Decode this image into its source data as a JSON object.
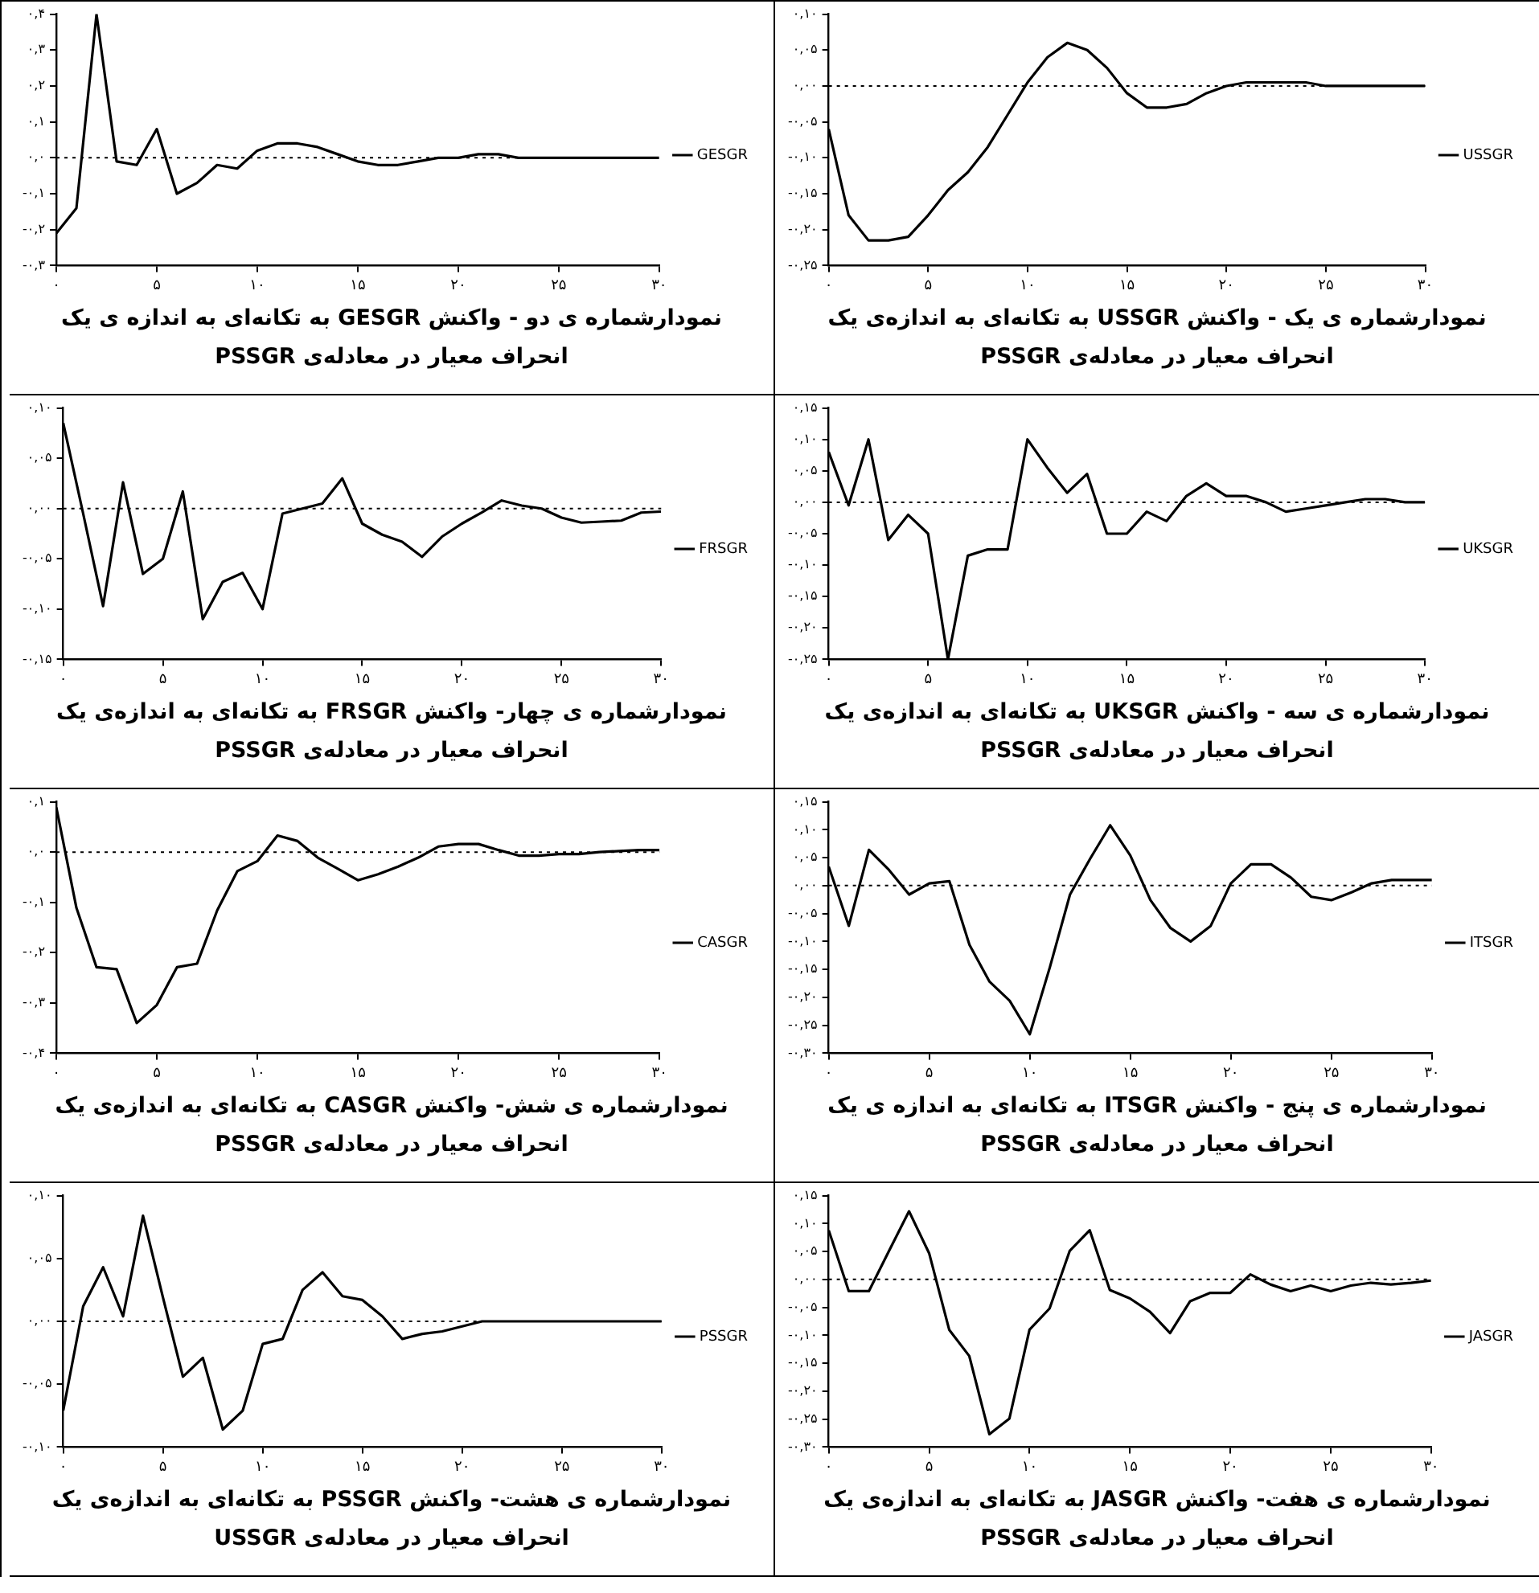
{
  "chart_data": [
    {
      "type": "line",
      "title": "نمودارشماره ی یک - واکنش USSGR به تکانه‌ای به اندازه‌ی یک انحراف معیار در معادله‌ی PSSGR",
      "x": [
        0,
        1,
        2,
        3,
        4,
        5,
        6,
        7,
        8,
        9,
        10,
        11,
        12,
        13,
        14,
        15,
        16,
        17,
        18,
        19,
        20,
        21,
        22,
        23,
        24,
        25,
        26,
        27,
        28,
        29,
        30
      ],
      "series": [
        {
          "name": "USSGR",
          "color": "#000000",
          "values": [
            -0.06,
            -0.18,
            -0.215,
            -0.215,
            -0.21,
            -0.18,
            -0.145,
            -0.12,
            -0.085,
            -0.04,
            0.005,
            0.04,
            0.06,
            0.05,
            0.025,
            -0.01,
            -0.03,
            -0.03,
            -0.025,
            -0.01,
            0,
            0.005,
            0.005,
            0.005,
            0.005,
            0,
            0,
            0,
            0,
            0,
            0
          ]
        }
      ],
      "xlim": [
        0,
        30
      ],
      "xticks": [
        {
          "value": 0,
          "label": "۰"
        },
        {
          "value": 5,
          "label": "۵"
        },
        {
          "value": 10,
          "label": "۱۰"
        },
        {
          "value": 15,
          "label": "۱۵"
        },
        {
          "value": 20,
          "label": "۲۰"
        },
        {
          "value": 25,
          "label": "۲۵"
        },
        {
          "value": 30,
          "label": "۳۰"
        }
      ],
      "ylim": [
        -0.25,
        0.1
      ],
      "yticks": [
        {
          "value": -0.25,
          "label": "-۰,۲۵"
        },
        {
          "value": -0.2,
          "label": "-۰,۲۰"
        },
        {
          "value": -0.15,
          "label": "-۰,۱۵"
        },
        {
          "value": -0.1,
          "label": "-۰,۱۰"
        },
        {
          "value": -0.05,
          "label": "-۰,۰۵"
        },
        {
          "value": 0,
          "label": "۰,۰۰"
        },
        {
          "value": 0.05,
          "label": "۰,۰۵"
        },
        {
          "value": 0.1,
          "label": "۰,۱۰"
        }
      ],
      "ref_lines": [
        {
          "axis": "y",
          "value": 0,
          "line_style": "dotted"
        }
      ],
      "legend": "right",
      "marker": "none",
      "line_style": "solid",
      "grid": false
    },
    {
      "type": "line",
      "title": "نمودارشماره ی دو - واکنش GESGR به تکانه‌ای به اندازه ی یک انحراف معیار در معادله‌ی PSSGR",
      "x": [
        0,
        1,
        2,
        3,
        4,
        5,
        6,
        7,
        8,
        9,
        10,
        11,
        12,
        13,
        14,
        15,
        16,
        17,
        18,
        19,
        20,
        21,
        22,
        23,
        24,
        25,
        26,
        27,
        28,
        29,
        30
      ],
      "series": [
        {
          "name": "GESGR",
          "color": "#000000",
          "values": [
            -0.21,
            -0.14,
            0.4,
            -0.01,
            -0.02,
            0.08,
            -0.1,
            -0.07,
            -0.02,
            -0.03,
            0.02,
            0.04,
            0.04,
            0.03,
            0.01,
            -0.01,
            -0.02,
            -0.02,
            -0.01,
            0,
            0,
            0.01,
            0.01,
            0,
            0,
            0,
            0,
            0,
            0,
            0,
            0
          ]
        }
      ],
      "xlim": [
        0,
        30
      ],
      "xticks": [
        {
          "value": 0,
          "label": "۰"
        },
        {
          "value": 5,
          "label": "۵"
        },
        {
          "value": 10,
          "label": "۱۰"
        },
        {
          "value": 15,
          "label": "۱۵"
        },
        {
          "value": 20,
          "label": "۲۰"
        },
        {
          "value": 25,
          "label": "۲۵"
        },
        {
          "value": 30,
          "label": "۳۰"
        }
      ],
      "ylim": [
        -0.3,
        0.4
      ],
      "yticks": [
        {
          "value": -0.3,
          "label": "-۰,۳"
        },
        {
          "value": -0.2,
          "label": "-۰,۲"
        },
        {
          "value": -0.1,
          "label": "-۰,۱"
        },
        {
          "value": 0,
          "label": "۰,۰"
        },
        {
          "value": 0.1,
          "label": "۰,۱"
        },
        {
          "value": 0.2,
          "label": "۰,۲"
        },
        {
          "value": 0.3,
          "label": "۰,۳"
        },
        {
          "value": 0.4,
          "label": "۰,۴"
        }
      ],
      "ref_lines": [
        {
          "axis": "y",
          "value": 0,
          "line_style": "dotted"
        }
      ],
      "legend": "right",
      "marker": "none",
      "line_style": "solid",
      "grid": false
    },
    {
      "type": "line",
      "title": "نمودارشماره ی سه - واکنش UKSGR به تکانه‌ای به اندازه‌ی یک انحراف معیار در معادله‌ی PSSGR",
      "x": [
        0,
        1,
        2,
        3,
        4,
        5,
        6,
        7,
        8,
        9,
        10,
        11,
        12,
        13,
        14,
        15,
        16,
        17,
        18,
        19,
        20,
        21,
        22,
        23,
        24,
        25,
        26,
        27,
        28,
        29,
        30
      ],
      "series": [
        {
          "name": "UKSGR",
          "color": "#000000",
          "values": [
            0.08,
            -0.005,
            0.1,
            -0.06,
            -0.02,
            -0.05,
            -0.25,
            -0.085,
            -0.075,
            -0.075,
            0.1,
            0.055,
            0.015,
            0.045,
            -0.05,
            -0.05,
            -0.015,
            -0.03,
            0.01,
            0.03,
            0.01,
            0.01,
            0,
            -0.015,
            -0.01,
            -0.005,
            0,
            0.005,
            0.005,
            0,
            0
          ]
        }
      ],
      "xlim": [
        0,
        30
      ],
      "xticks": [
        {
          "value": 0,
          "label": "۰"
        },
        {
          "value": 5,
          "label": "۵"
        },
        {
          "value": 10,
          "label": "۱۰"
        },
        {
          "value": 15,
          "label": "۱۵"
        },
        {
          "value": 20,
          "label": "۲۰"
        },
        {
          "value": 25,
          "label": "۲۵"
        },
        {
          "value": 30,
          "label": "۳۰"
        }
      ],
      "ylim": [
        -0.25,
        0.15
      ],
      "yticks": [
        {
          "value": -0.25,
          "label": "-۰,۲۵"
        },
        {
          "value": -0.2,
          "label": "-۰,۲۰"
        },
        {
          "value": -0.15,
          "label": "-۰,۱۵"
        },
        {
          "value": -0.1,
          "label": "-۰,۱۰"
        },
        {
          "value": -0.05,
          "label": "-۰,۰۵"
        },
        {
          "value": 0,
          "label": "۰,۰۰"
        },
        {
          "value": 0.05,
          "label": "۰,۰۵"
        },
        {
          "value": 0.1,
          "label": "۰,۱۰"
        },
        {
          "value": 0.15,
          "label": "۰,۱۵"
        }
      ],
      "ref_lines": [
        {
          "axis": "y",
          "value": 0,
          "line_style": "dotted"
        }
      ],
      "legend": "right",
      "marker": "none",
      "line_style": "solid",
      "grid": false
    },
    {
      "type": "line",
      "title": "نمودارشماره ی چهار- واکنش FRSGR به تکانه‌ای به اندازه‌ی یک انحراف معیار در معادله‌ی PSSGR",
      "x": [
        0,
        1,
        2,
        3,
        4,
        5,
        6,
        7,
        8,
        9,
        10,
        11,
        12,
        13,
        14,
        15,
        16,
        17,
        18,
        19,
        20,
        21,
        22,
        23,
        24,
        25,
        26,
        27,
        28,
        29,
        30
      ],
      "series": [
        {
          "name": "FRSGR",
          "color": "#000000",
          "values": [
            0.085,
            -0.005,
            -0.097,
            0.026,
            -0.065,
            -0.05,
            0.017,
            -0.11,
            -0.073,
            -0.064,
            -0.1,
            -0.005,
            0,
            0.005,
            0.03,
            -0.015,
            -0.026,
            -0.033,
            -0.048,
            -0.028,
            -0.015,
            -0.004,
            0.008,
            0.003,
            0,
            -0.009,
            -0.014,
            -0.013,
            -0.012,
            -0.004,
            -0.003
          ]
        }
      ],
      "xlim": [
        0,
        30
      ],
      "xticks": [
        {
          "value": 0,
          "label": "۰"
        },
        {
          "value": 5,
          "label": "۵"
        },
        {
          "value": 10,
          "label": "۱۰"
        },
        {
          "value": 15,
          "label": "۱۵"
        },
        {
          "value": 20,
          "label": "۲۰"
        },
        {
          "value": 25,
          "label": "۲۵"
        },
        {
          "value": 30,
          "label": "۳۰"
        }
      ],
      "ylim": [
        -0.15,
        0.1
      ],
      "yticks": [
        {
          "value": -0.15,
          "label": "-۰,۱۵"
        },
        {
          "value": -0.1,
          "label": "-۰,۱۰"
        },
        {
          "value": -0.05,
          "label": "-۰,۰۵"
        },
        {
          "value": 0,
          "label": "۰,۰۰"
        },
        {
          "value": 0.05,
          "label": "۰,۰۵"
        },
        {
          "value": 0.1,
          "label": "۰,۱۰"
        }
      ],
      "ref_lines": [
        {
          "axis": "y",
          "value": 0,
          "line_style": "dotted"
        }
      ],
      "legend": "right",
      "marker": "none",
      "line_style": "solid",
      "grid": false
    },
    {
      "type": "line",
      "title": "نمودارشماره ی پنج - واکنش ITSGR به تکانه‌ای به اندازه ی یک انحراف معیار در معادله‌ی PSSGR",
      "x": [
        0,
        1,
        2,
        3,
        4,
        5,
        6,
        7,
        8,
        9,
        10,
        11,
        12,
        13,
        14,
        15,
        16,
        17,
        18,
        19,
        20,
        21,
        22,
        23,
        24,
        25,
        26,
        27,
        28,
        29,
        30
      ],
      "series": [
        {
          "name": "ITSGR",
          "color": "#000000",
          "values": [
            0.034,
            -0.072,
            0.064,
            0.028,
            -0.016,
            0.004,
            0.008,
            -0.106,
            -0.172,
            -0.206,
            -0.266,
            -0.146,
            -0.016,
            0.048,
            0.108,
            0.054,
            -0.026,
            -0.076,
            -0.1,
            -0.072,
            0.004,
            0.038,
            0.038,
            0.014,
            -0.02,
            -0.026,
            -0.012,
            0.004,
            0.01,
            0.01,
            0.01
          ]
        }
      ],
      "xlim": [
        0,
        30
      ],
      "xticks": [
        {
          "value": 0,
          "label": "۰"
        },
        {
          "value": 5,
          "label": "۵"
        },
        {
          "value": 10,
          "label": "۱۰"
        },
        {
          "value": 15,
          "label": "۱۵"
        },
        {
          "value": 20,
          "label": "۲۰"
        },
        {
          "value": 25,
          "label": "۲۵"
        },
        {
          "value": 30,
          "label": "۳۰"
        }
      ],
      "ylim": [
        -0.3,
        0.15
      ],
      "yticks": [
        {
          "value": -0.3,
          "label": "-۰,۳۰"
        },
        {
          "value": -0.25,
          "label": "-۰,۲۵"
        },
        {
          "value": -0.2,
          "label": "-۰,۲۰"
        },
        {
          "value": -0.15,
          "label": "-۰,۱۵"
        },
        {
          "value": -0.1,
          "label": "-۰,۱۰"
        },
        {
          "value": -0.05,
          "label": "-۰,۰۵"
        },
        {
          "value": 0,
          "label": "۰,۰۰"
        },
        {
          "value": 0.05,
          "label": "۰,۰۵"
        },
        {
          "value": 0.1,
          "label": "۰,۱۰"
        },
        {
          "value": 0.15,
          "label": "۰,۱۵"
        }
      ],
      "ref_lines": [
        {
          "axis": "y",
          "value": 0,
          "line_style": "dotted"
        }
      ],
      "legend": "right",
      "marker": "none",
      "line_style": "solid",
      "grid": false
    },
    {
      "type": "line",
      "title": "نمودارشماره ی شش- واکنش CASGR به تکانه‌ای به اندازه‌ی یک انحراف معیار در معادله‌ی PSSGR",
      "x": [
        0,
        1,
        2,
        3,
        4,
        5,
        6,
        7,
        8,
        9,
        10,
        11,
        12,
        13,
        14,
        15,
        16,
        17,
        18,
        19,
        20,
        21,
        22,
        23,
        24,
        25,
        26,
        27,
        28,
        29,
        30
      ],
      "series": [
        {
          "name": "CASGR",
          "color": "#000000",
          "values": [
            0.089,
            -0.111,
            -0.229,
            -0.233,
            -0.34,
            -0.304,
            -0.229,
            -0.222,
            -0.116,
            -0.038,
            -0.018,
            0.033,
            0.022,
            -0.011,
            -0.033,
            -0.056,
            -0.044,
            -0.029,
            -0.011,
            0.011,
            0.016,
            0.016,
            0.004,
            -0.007,
            -0.007,
            -0.004,
            -0.004,
            0,
            0.002,
            0.004,
            0.004
          ]
        }
      ],
      "xlim": [
        0,
        30
      ],
      "xticks": [
        {
          "value": 0,
          "label": "۰"
        },
        {
          "value": 5,
          "label": "۵"
        },
        {
          "value": 10,
          "label": "۱۰"
        },
        {
          "value": 15,
          "label": "۱۵"
        },
        {
          "value": 20,
          "label": "۲۰"
        },
        {
          "value": 25,
          "label": "۲۵"
        },
        {
          "value": 30,
          "label": "۳۰"
        }
      ],
      "ylim": [
        -0.4,
        0.1
      ],
      "yticks": [
        {
          "value": -0.4,
          "label": "-۰,۴"
        },
        {
          "value": -0.3,
          "label": "-۰,۳"
        },
        {
          "value": -0.2,
          "label": "-۰,۲"
        },
        {
          "value": -0.1,
          "label": "-۰,۱"
        },
        {
          "value": 0,
          "label": "۰,۰"
        },
        {
          "value": 0.1,
          "label": "۰,۱"
        }
      ],
      "ref_lines": [
        {
          "axis": "y",
          "value": 0,
          "line_style": "dotted"
        }
      ],
      "legend": "right",
      "marker": "none",
      "line_style": "solid",
      "grid": false
    },
    {
      "type": "line",
      "title": "نمودارشماره ی هفت- واکنش JASGR به تکانه‌ای به اندازه‌ی یک انحراف معیار در معادله‌ی PSSGR",
      "x": [
        0,
        1,
        2,
        3,
        4,
        5,
        6,
        7,
        8,
        9,
        10,
        11,
        12,
        13,
        14,
        15,
        16,
        17,
        18,
        19,
        20,
        21,
        22,
        23,
        24,
        25,
        26,
        27,
        28,
        29,
        30
      ],
      "series": [
        {
          "name": "JASGR",
          "color": "#000000",
          "values": [
            0.088,
            -0.021,
            -0.021,
            0.051,
            0.122,
            0.047,
            -0.09,
            -0.137,
            -0.277,
            -0.249,
            -0.09,
            -0.052,
            0.051,
            0.088,
            -0.019,
            -0.034,
            -0.058,
            -0.096,
            -0.039,
            -0.024,
            -0.024,
            0.009,
            -0.009,
            -0.021,
            -0.011,
            -0.021,
            -0.011,
            -0.006,
            -0.009,
            -0.006,
            -0.002
          ]
        }
      ],
      "xlim": [
        0,
        30
      ],
      "xticks": [
        {
          "value": 0,
          "label": "۰"
        },
        {
          "value": 5,
          "label": "۵"
        },
        {
          "value": 10,
          "label": "۱۰"
        },
        {
          "value": 15,
          "label": "۱۵"
        },
        {
          "value": 20,
          "label": "۲۰"
        },
        {
          "value": 25,
          "label": "۲۵"
        },
        {
          "value": 30,
          "label": "۳۰"
        }
      ],
      "ylim": [
        -0.3,
        0.15
      ],
      "yticks": [
        {
          "value": -0.3,
          "label": "-۰,۳۰"
        },
        {
          "value": -0.25,
          "label": "-۰,۲۵"
        },
        {
          "value": -0.2,
          "label": "-۰,۲۰"
        },
        {
          "value": -0.15,
          "label": "-۰,۱۵"
        },
        {
          "value": -0.1,
          "label": "-۰,۱۰"
        },
        {
          "value": -0.05,
          "label": "-۰,۰۵"
        },
        {
          "value": 0,
          "label": "۰,۰۰"
        },
        {
          "value": 0.05,
          "label": "۰,۰۵"
        },
        {
          "value": 0.1,
          "label": "۰,۱۰"
        },
        {
          "value": 0.15,
          "label": "۰,۱۵"
        }
      ],
      "ref_lines": [
        {
          "axis": "y",
          "value": 0,
          "line_style": "dotted"
        }
      ],
      "legend": "right",
      "marker": "none",
      "line_style": "solid",
      "grid": false
    },
    {
      "type": "line",
      "title": "نمودارشماره ی هشت- واکنش PSSGR به تکانه‌ای به اندازه‌ی یک انحراف معیار در معادله‌ی USSGR",
      "x": [
        0,
        1,
        2,
        3,
        4,
        5,
        6,
        7,
        8,
        9,
        10,
        11,
        12,
        13,
        14,
        15,
        16,
        17,
        18,
        19,
        20,
        21,
        22,
        23,
        24,
        25,
        26,
        27,
        28,
        29,
        30
      ],
      "series": [
        {
          "name": "PSSGR",
          "color": "#000000",
          "values": [
            -0.071,
            0.012,
            0.043,
            0.004,
            0.084,
            0.019,
            -0.044,
            -0.029,
            -0.086,
            -0.071,
            -0.018,
            -0.014,
            0.025,
            0.039,
            0.02,
            0.017,
            0.004,
            -0.014,
            -0.01,
            -0.008,
            -0.004,
            0,
            0,
            0,
            0,
            0,
            0,
            0,
            0,
            0,
            0
          ]
        }
      ],
      "xlim": [
        0,
        30
      ],
      "xticks": [
        {
          "value": 0,
          "label": "۰"
        },
        {
          "value": 5,
          "label": "۵"
        },
        {
          "value": 10,
          "label": "۱۰"
        },
        {
          "value": 15,
          "label": "۱۵"
        },
        {
          "value": 20,
          "label": "۲۰"
        },
        {
          "value": 25,
          "label": "۲۵"
        },
        {
          "value": 30,
          "label": "۳۰"
        }
      ],
      "ylim": [
        -0.1,
        0.1
      ],
      "yticks": [
        {
          "value": -0.1,
          "label": "-۰,۱۰"
        },
        {
          "value": -0.05,
          "label": "-۰,۰۵"
        },
        {
          "value": 0,
          "label": "۰,۰۰"
        },
        {
          "value": 0.05,
          "label": "۰,۰۵"
        },
        {
          "value": 0.1,
          "label": "۰,۱۰"
        }
      ],
      "ref_lines": [
        {
          "axis": "y",
          "value": 0,
          "line_style": "dotted"
        }
      ],
      "legend": "right",
      "marker": "none",
      "line_style": "solid",
      "grid": false
    }
  ]
}
